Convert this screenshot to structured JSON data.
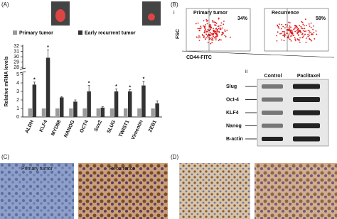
{
  "chart_data": {
    "type": "bar",
    "panel_label": "(A)",
    "y_label": "Relative mRNA levels",
    "categories": [
      "ALDH",
      "KLF4",
      "MYD88",
      "NANOG",
      "OCT4",
      "Sox2",
      "SLUG",
      "TWIST1",
      "Vimentin",
      "ZEB1"
    ],
    "series": [
      {
        "name": "Primary tumor",
        "color": "#9a9a9a",
        "values": [
          1,
          1,
          1,
          1,
          1,
          1,
          1,
          1,
          1,
          1
        ]
      },
      {
        "name": "Early recurrent tumor",
        "color": "#333333",
        "values": [
          3.8,
          29.8,
          2.3,
          1.8,
          3.0,
          1.1,
          3.0,
          3.0,
          3.7,
          1.6
        ],
        "errors": [
          0.3,
          1.5,
          0.1,
          0.2,
          0.7,
          0.1,
          0.3,
          0.2,
          0.5,
          0.3
        ]
      }
    ],
    "ylim": [
      0,
      32
    ],
    "axis_break": [
      5,
      28
    ],
    "yticks": [
      0,
      1,
      2,
      3,
      4,
      5,
      28,
      29,
      30,
      31,
      32
    ],
    "annotations": [
      {
        "text": "*",
        "category": "ALDH"
      },
      {
        "text": "*",
        "category": "KLF4"
      },
      {
        "text": "*",
        "category": "OCT4"
      },
      {
        "text": "*",
        "category": "SLUG"
      },
      {
        "text": "*",
        "category": "TWIST1"
      },
      {
        "text": "*",
        "category": "Vimentin"
      }
    ]
  },
  "panel_b": {
    "label": "(B)",
    "sub_i": "i",
    "sub_ii": "ii",
    "plots": [
      {
        "title": "Primary tumor",
        "percent": "34%"
      },
      {
        "title": "Recurrence",
        "percent": "58%"
      }
    ],
    "y_axis": "FSC",
    "x_axis": "CD44-FITC",
    "lanes": [
      "Control",
      "Paclitaxel"
    ],
    "blots": [
      "Slug",
      "Oct-4",
      "KLF4",
      "Nanog",
      "B-actin"
    ]
  },
  "panel_c": {
    "label": "(C)",
    "images": [
      "Primary tumor",
      "Recurrence"
    ]
  },
  "panel_d": {
    "label": "(D)"
  }
}
